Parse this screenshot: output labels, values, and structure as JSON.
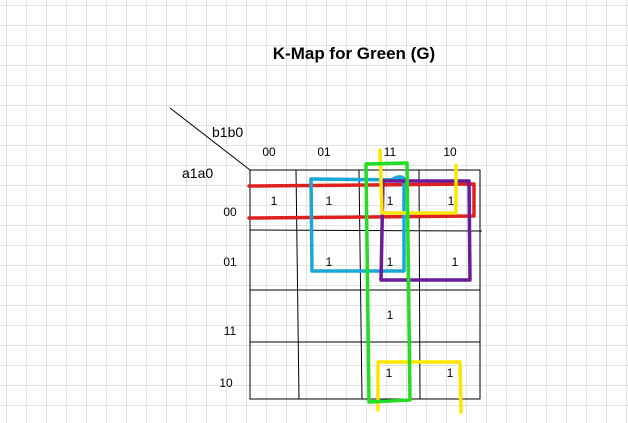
{
  "diagram": {
    "title": "K-Map for Green (G)",
    "column_variable": "b1b0",
    "row_variable": "a1a0",
    "column_headers": [
      "00",
      "01",
      "11",
      "10"
    ],
    "row_headers": [
      "00",
      "01",
      "11",
      "10"
    ],
    "cells": [
      [
        "1",
        "1",
        "1",
        "1"
      ],
      [
        "",
        "1",
        "1",
        "1"
      ],
      [
        "",
        "",
        "1",
        ""
      ],
      [
        "",
        "",
        "1",
        "1"
      ]
    ],
    "grouping_colors": {
      "red": "#e02020",
      "blue": "#1aa7d8",
      "green": "#22dd22",
      "purple": "#6a1b9a",
      "yellow": "#ffe600"
    }
  }
}
